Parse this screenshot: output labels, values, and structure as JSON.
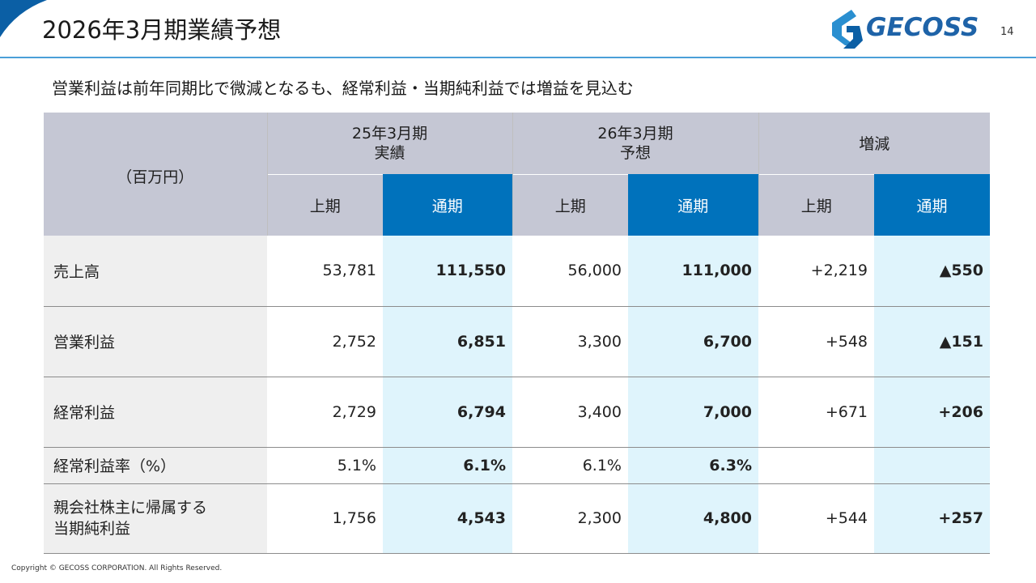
{
  "header": {
    "title": "2026年3月期業績予想",
    "logo_text": "GECOSS",
    "page_number": "14",
    "brand_color": "#1e63a8",
    "accent_line_color": "#4a9fd8"
  },
  "subtitle": "営業利益は前年同期比で微減となるも、経常利益・当期純利益では増益を見込む",
  "table": {
    "unit_label": "（百万円）",
    "groups": {
      "fy25": {
        "line1": "25年3月期",
        "line2": "実績"
      },
      "fy26": {
        "line1": "26年3月期",
        "line2": "予想"
      },
      "change": "増減"
    },
    "sub_headers": {
      "half": "上期",
      "full": "通期"
    },
    "rows": [
      {
        "label": "売上高",
        "fy25_half": "53,781",
        "fy25_full": "111,550",
        "fy26_half": "56,000",
        "fy26_full": "111,000",
        "chg_half": "+2,219",
        "chg_full": "▲550"
      },
      {
        "label": "営業利益",
        "fy25_half": "2,752",
        "fy25_full": "6,851",
        "fy26_half": "3,300",
        "fy26_full": "6,700",
        "chg_half": "+548",
        "chg_full": "▲151"
      },
      {
        "label": "経常利益",
        "fy25_half": "2,729",
        "fy25_full": "6,794",
        "fy26_half": "3,400",
        "fy26_full": "7,000",
        "chg_half": "+671",
        "chg_full": "+206"
      },
      {
        "label": "経常利益率（%）",
        "fy25_half": "5.1%",
        "fy25_full": "6.1%",
        "fy26_half": "6.1%",
        "fy26_full": "6.3%",
        "chg_half": "",
        "chg_full": ""
      },
      {
        "label_line1": "親会社株主に帰属する",
        "label_line2": "当期純利益",
        "fy25_half": "1,756",
        "fy25_full": "4,543",
        "fy26_half": "2,300",
        "fy26_full": "4,800",
        "chg_half": "+544",
        "chg_full": "+257"
      }
    ],
    "colors": {
      "header_gray": "#c5c7d4",
      "header_blue": "#0072bc",
      "full_year_cell": "#dff4fc",
      "label_cell": "#efefef"
    }
  },
  "footer": {
    "copyright": "Copyright © GECOSS CORPORATION. All Rights Reserved."
  }
}
